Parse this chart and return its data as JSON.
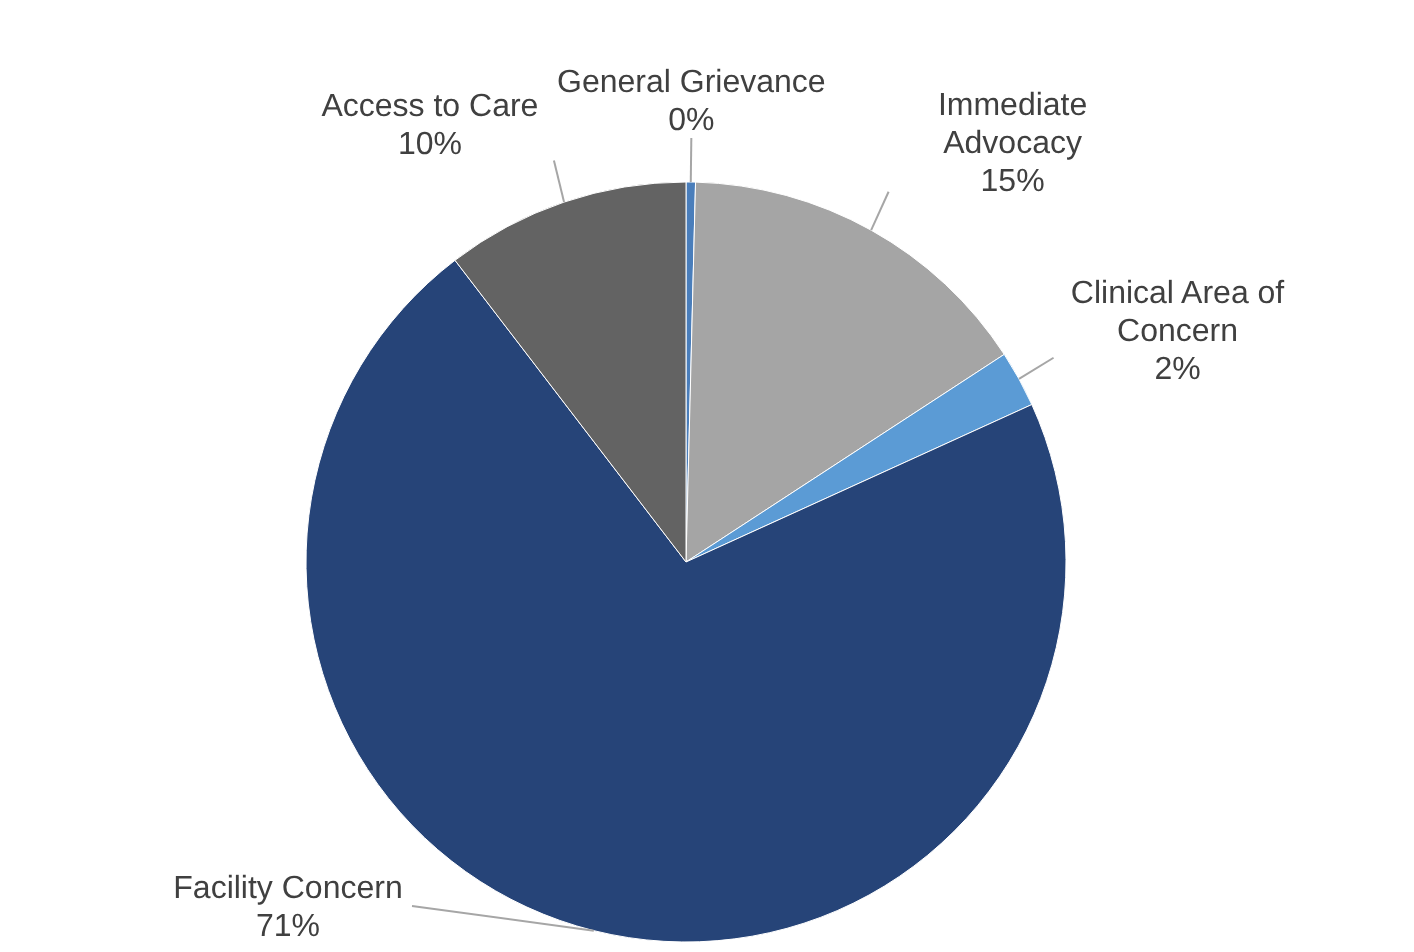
{
  "chart_data": {
    "type": "pie",
    "categories": [
      "General Grievance",
      "Immediate Advocacy",
      "Clinical Area of Concern",
      "Facility Concern",
      "Access to Care"
    ],
    "values": [
      0.4,
      15.4,
      2.4,
      71.4,
      10.4
    ],
    "value_labels": [
      "0%",
      "15%",
      "2%",
      "71%",
      "10%"
    ],
    "colors": [
      "#4a7ebb",
      "#a5a5a5",
      "#5b9bd5",
      "#264478",
      "#636363"
    ]
  }
}
